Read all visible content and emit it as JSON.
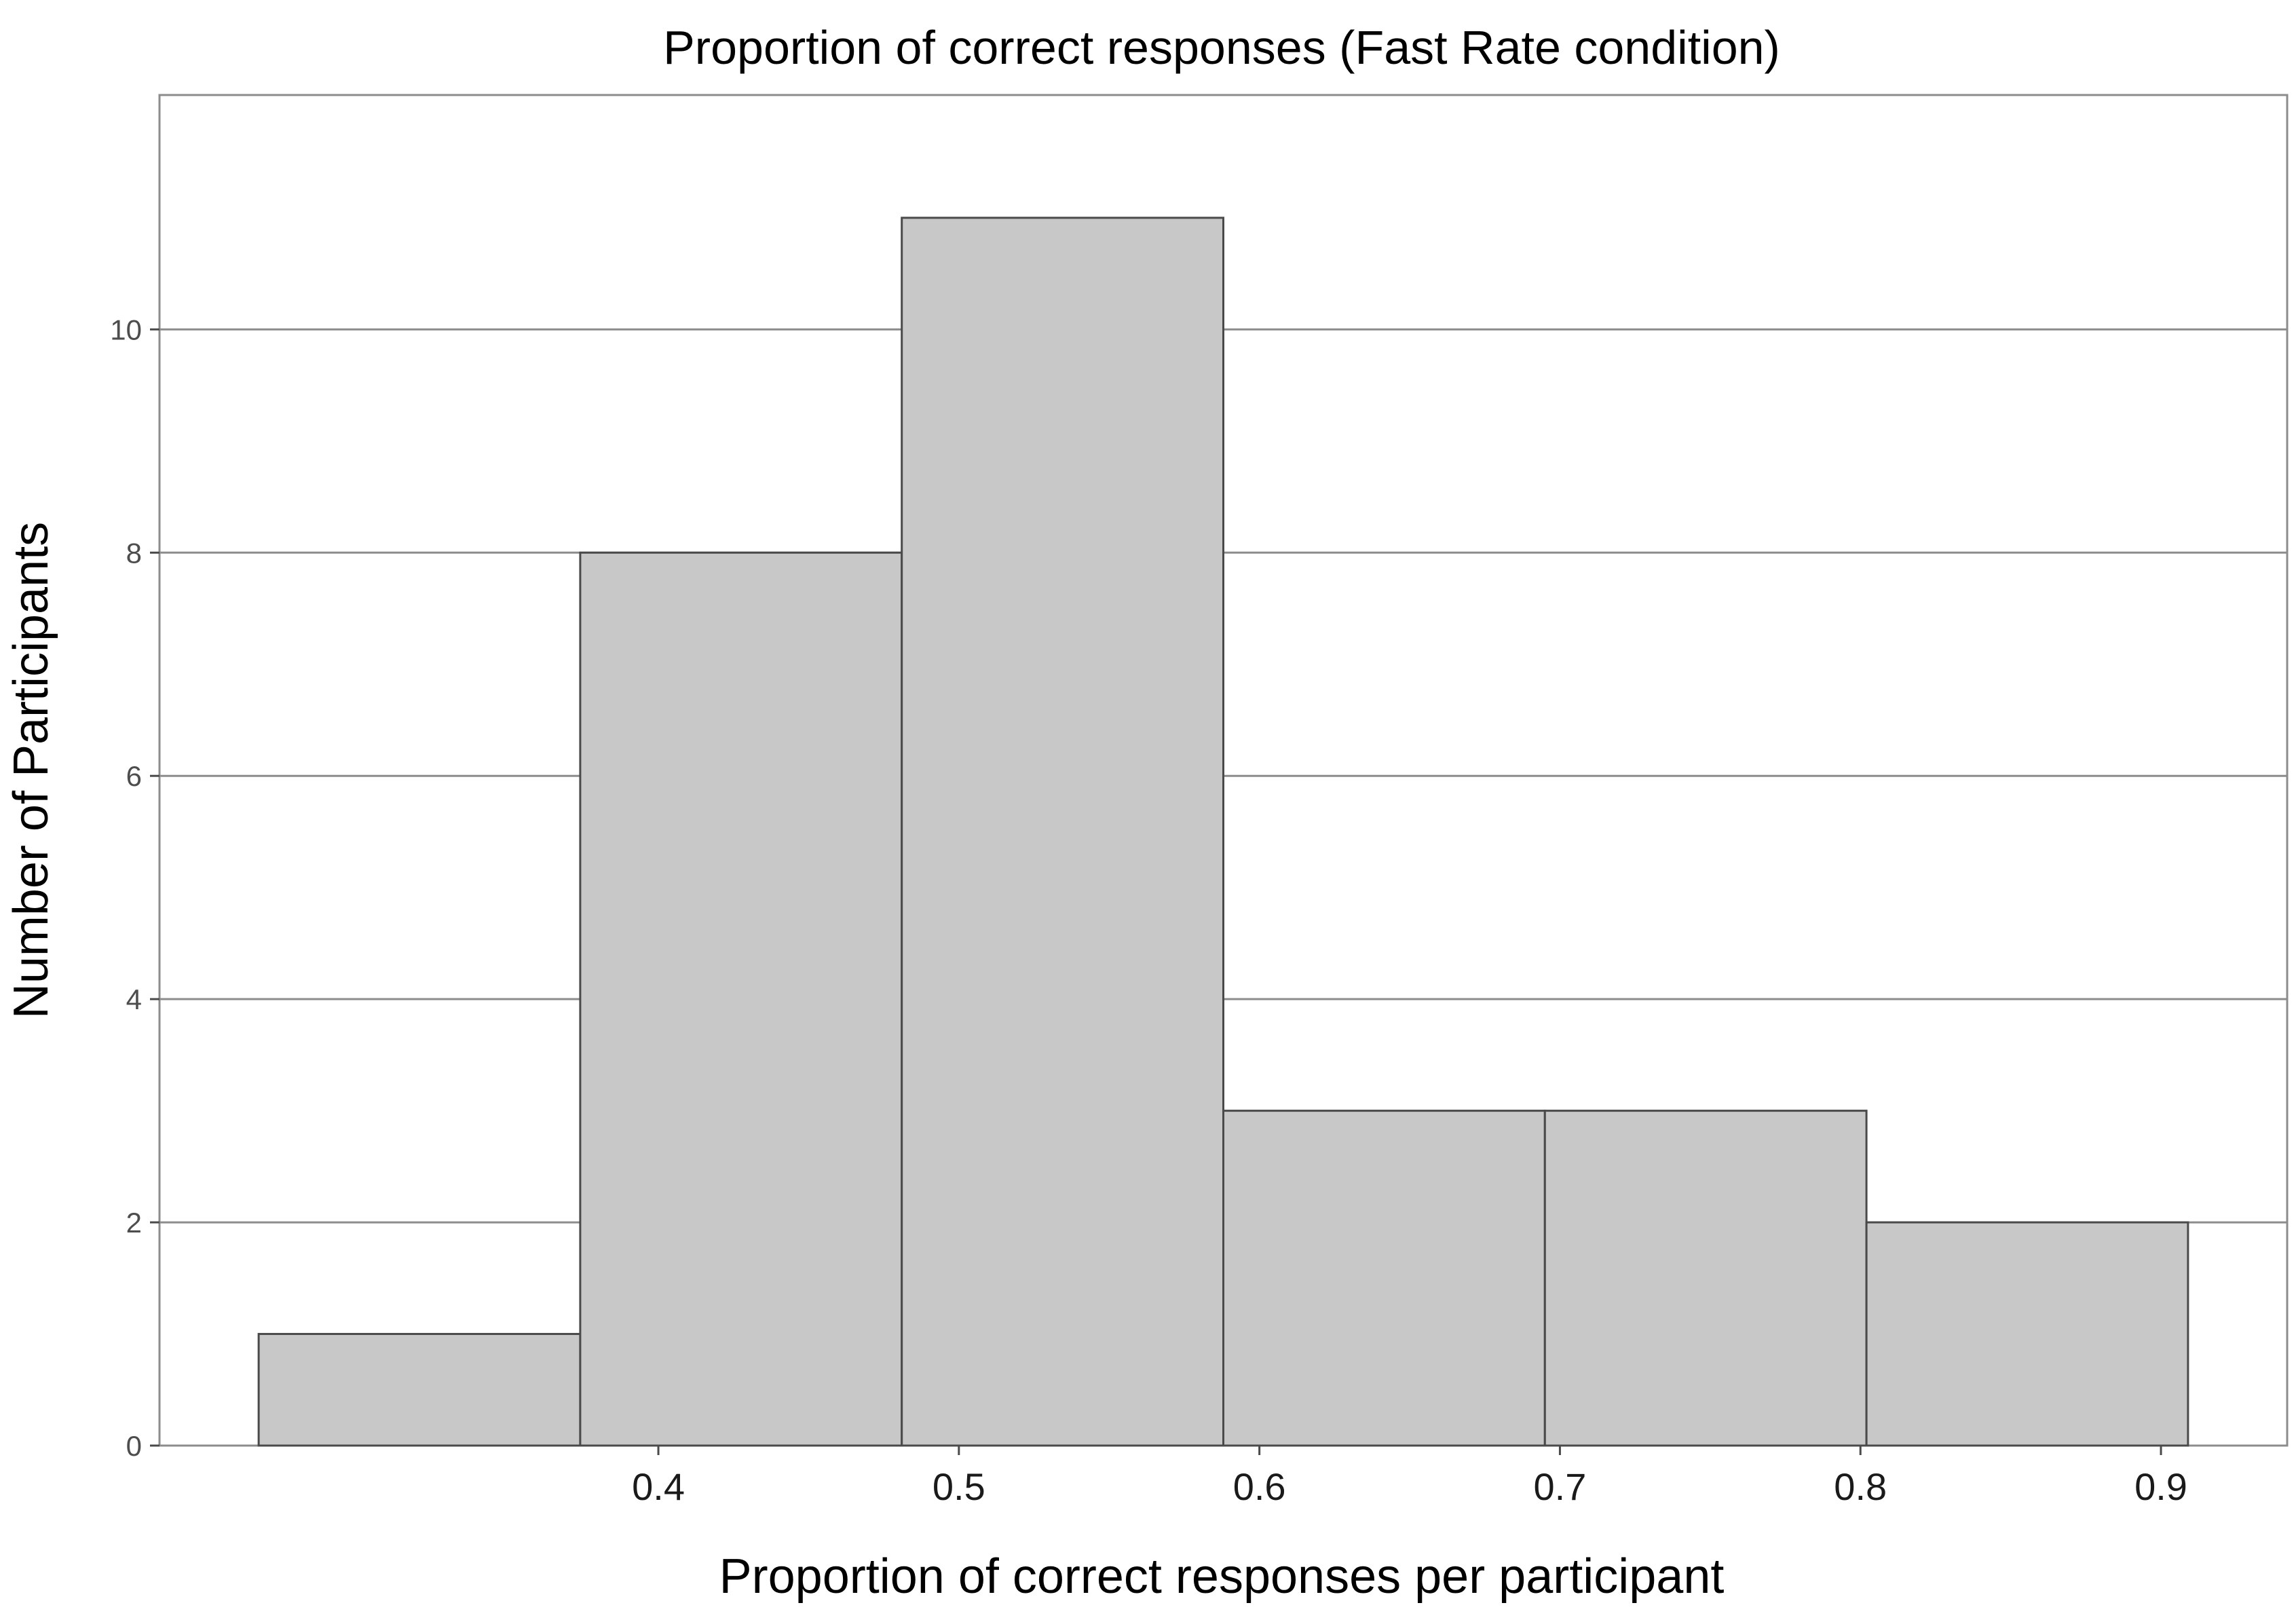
{
  "chart_data": {
    "type": "bar",
    "title": "Proportion of correct responses (Fast Rate condition)",
    "xlabel": "Proportion of correct responses per participant",
    "ylabel": "Number of Participants",
    "bins": [
      {
        "from": 0.267,
        "to": 0.374,
        "count": 1
      },
      {
        "from": 0.374,
        "to": 0.481,
        "count": 8
      },
      {
        "from": 0.481,
        "to": 0.588,
        "count": 11
      },
      {
        "from": 0.588,
        "to": 0.695,
        "count": 3
      },
      {
        "from": 0.695,
        "to": 0.802,
        "count": 3
      },
      {
        "from": 0.802,
        "to": 0.909,
        "count": 2
      }
    ],
    "x_ticks": [
      {
        "value": 0.4,
        "label": "0.4"
      },
      {
        "value": 0.5,
        "label": "0.5"
      },
      {
        "value": 0.6,
        "label": "0.6"
      },
      {
        "value": 0.7,
        "label": "0.7"
      },
      {
        "value": 0.8,
        "label": "0.8"
      },
      {
        "value": 0.9,
        "label": "0.9"
      }
    ],
    "y_ticks": [
      {
        "value": 0,
        "label": "0"
      },
      {
        "value": 2,
        "label": "2"
      },
      {
        "value": 4,
        "label": "4"
      },
      {
        "value": 6,
        "label": "6"
      },
      {
        "value": 8,
        "label": "8"
      },
      {
        "value": 10,
        "label": "10"
      }
    ],
    "xlim": [
      0.234,
      0.942
    ],
    "ylim": [
      0,
      12.1
    ],
    "grid": "horizontal",
    "bar_fill": "#c8c8c8",
    "bar_outline": "#4a4a4a",
    "grid_color": "#8c8c8c"
  }
}
